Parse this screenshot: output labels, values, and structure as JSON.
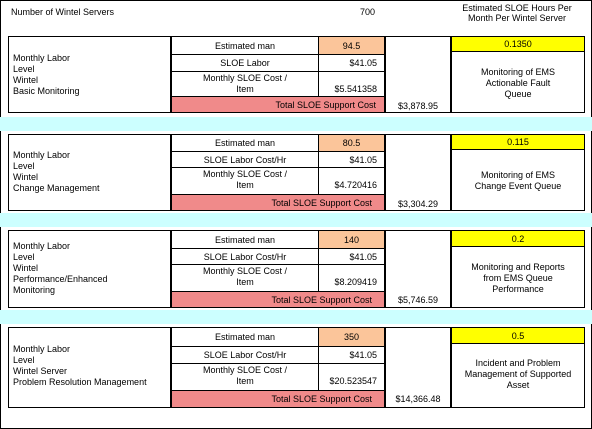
{
  "header": {
    "servers_label": "Number of Wintel Servers",
    "servers_value": "700",
    "hours_label": "Estimated SLOE Hours Per Month Per Wintel Server"
  },
  "sections": [
    {
      "desc_lines": [
        "Monthly Labor",
        "Level",
        "Wintel",
        "Basic Monitoring"
      ],
      "man_label": "Estimated man",
      "man_value": "94.5",
      "labor_label": "SLOE Labor",
      "labor_value": "$41.05",
      "cost_label_1": "Monthly SLOE Cost /",
      "cost_label_2": "Item",
      "cost_value": "$5.541358",
      "total_label": "Total SLOE Support Cost",
      "total_value": "$3,878.95",
      "hours_value": "0.1350",
      "note_lines": [
        "Monitoring of  EMS",
        "Actionable Fault",
        "Queue"
      ]
    },
    {
      "desc_lines": [
        "Monthly Labor",
        "Level",
        "Wintel",
        "Change Management"
      ],
      "man_label": "Estimated man",
      "man_value": "80.5",
      "labor_label": "SLOE Labor Cost/Hr",
      "labor_value": "$41.05",
      "cost_label_1": "Monthly SLOE Cost /",
      "cost_label_2": "Item",
      "cost_value": "$4.720416",
      "total_label": "Total SLOE Support Cost",
      "total_value": "$3,304.29",
      "hours_value": "0.115",
      "note_lines": [
        "Monitoring of EMS",
        "Change Event Queue"
      ]
    },
    {
      "desc_lines": [
        "Monthly Labor",
        "Level",
        "Wintel",
        "Performance/Enhanced",
        "Monitoring"
      ],
      "man_label": "Estimated man",
      "man_value": "140",
      "labor_label": "SLOE Labor Cost/Hr",
      "labor_value": "$41.05",
      "cost_label_1": "Monthly SLOE Cost /",
      "cost_label_2": "Item",
      "cost_value": "$8.209419",
      "total_label": "Total SLOE Support Cost",
      "total_value": "$5,746.59",
      "hours_value": "0.2",
      "note_lines": [
        "Monitoring and Reports",
        "from EMS Queue",
        "Performance"
      ]
    },
    {
      "desc_lines": [
        "Monthly Labor",
        "Level",
        "Wintel Server",
        "Problem Resolution Management"
      ],
      "man_label": "Estimated man",
      "man_value": "350",
      "labor_label": "SLOE Labor Cost/Hr",
      "labor_value": "$41.05",
      "cost_label_1": "Monthly SLOE Cost /",
      "cost_label_2": "Item",
      "cost_value": "$20.523547",
      "total_label": "Total SLOE Support Cost",
      "total_value": "$14,366.48",
      "hours_value": "0.5",
      "note_lines": [
        "Incident and Problem",
        "Management of Supported",
        "Asset"
      ]
    }
  ],
  "colors": {
    "peach": "#fbc59a",
    "pink": "#f08a8a",
    "yellow": "#ffff00",
    "band": "#ccffff"
  }
}
